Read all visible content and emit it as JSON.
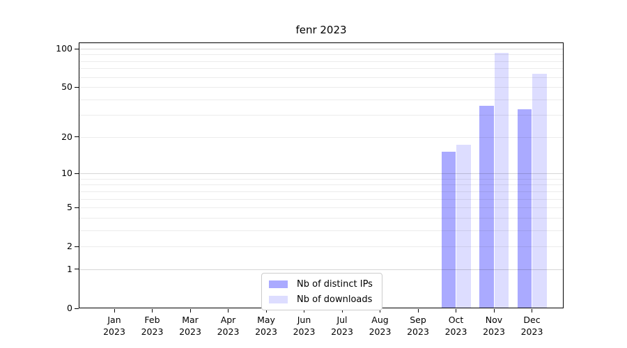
{
  "chart_data": {
    "type": "bar",
    "title": "fenr 2023",
    "categories": [
      "Jan",
      "Feb",
      "Mar",
      "Apr",
      "May",
      "Jun",
      "Jul",
      "Aug",
      "Sep",
      "Oct",
      "Nov",
      "Dec"
    ],
    "category_year": "2023",
    "series": [
      {
        "name": "Nb of distinct IPs",
        "color": "#aaaaff",
        "values": [
          0,
          0,
          0,
          0,
          0,
          0,
          0,
          0,
          0,
          15,
          35,
          33
        ]
      },
      {
        "name": "Nb of downloads",
        "color": "#ddddff",
        "values": [
          0,
          0,
          0,
          0,
          0,
          0,
          0,
          0,
          0,
          17,
          92,
          63
        ]
      }
    ],
    "xlabel": "",
    "ylabel": "",
    "yscale": "log1p",
    "ylim": [
      0,
      112
    ],
    "y_tick_labels": [
      "0",
      "1",
      "2",
      "5",
      "10",
      "20",
      "50",
      "100"
    ],
    "y_ticks": [
      0,
      1,
      2,
      5,
      10,
      20,
      50,
      100
    ],
    "y_major_gridlines": [
      1,
      10,
      100
    ],
    "y_minor_gridlines": [
      2,
      3,
      4,
      5,
      6,
      7,
      8,
      9,
      20,
      30,
      40,
      50,
      60,
      70,
      80,
      90
    ],
    "grid": true,
    "legend_position": "bottom-center"
  }
}
